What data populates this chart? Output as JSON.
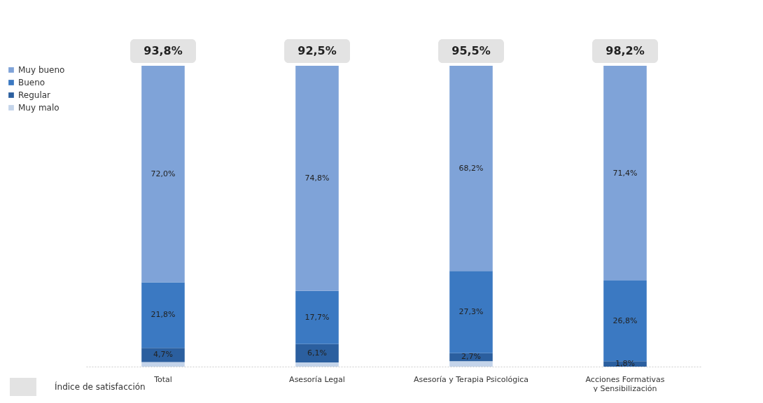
{
  "chart_data": {
    "type": "bar",
    "stacked": true,
    "data_labels": false,
    "legend": "left",
    "categories": [
      "Total",
      "Asesoría Legal",
      "Asesoría y Terapia Psicológica",
      "Acciones Formativas y Sensibilización"
    ],
    "series": [
      {
        "name": "Muy malo",
        "color": "#c4d4ea",
        "values": [
          1.5,
          1.4,
          1.8,
          0
        ],
        "value_labels": [
          null,
          null,
          null,
          null
        ]
      },
      {
        "name": "Regular",
        "color": "#2b5f9f",
        "values": [
          4.7,
          6.1,
          2.7,
          1.8
        ],
        "value_labels": [
          "4,7%",
          "6,1%",
          "2,7%",
          "1,8%"
        ]
      },
      {
        "name": "Bueno",
        "color": "#3b79c2",
        "values": [
          21.8,
          17.7,
          27.3,
          26.8
        ],
        "value_labels": [
          "21,8%",
          "17,7%",
          "27,3%",
          "26,8%"
        ]
      },
      {
        "name": "Muy bueno",
        "color": "#7fa3d8",
        "values": [
          72.0,
          74.8,
          68.2,
          71.4
        ],
        "value_labels": [
          "72,0%",
          "74,8%",
          "68,2%",
          "71,4%"
        ]
      }
    ],
    "annotations": [
      {
        "text": "93,8%",
        "x": "Total",
        "y": 100
      },
      {
        "text": "92,5%",
        "x": "Asesoría Legal",
        "y": 100
      },
      {
        "text": "95,5%",
        "x": "Asesoría y Terapia Psicológica",
        "y": 100
      },
      {
        "text": "98,2%",
        "x": "Acciones Formativas y Sensibilización",
        "y": 100
      },
      "Índice de satisfacción"
    ]
  }
}
